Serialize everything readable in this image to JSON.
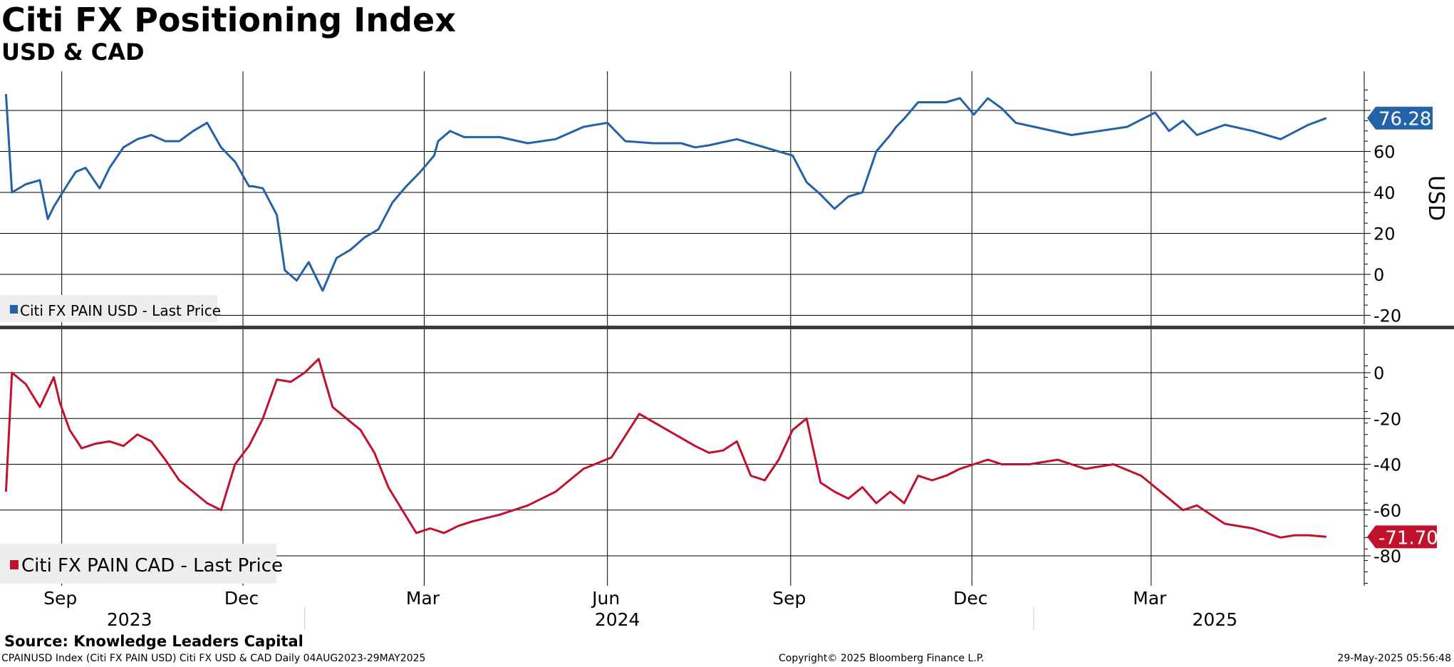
{
  "header": {
    "title": "Citi FX Positioning Index",
    "subtitle": "USD & CAD"
  },
  "footer": {
    "source": "Source: Knowledge Leaders Capital",
    "ticker_info": "CPAINUSD Index (Citi FX PAIN USD) Citi FX USD & CAD  Daily 04AUG2023-29MAY2025",
    "copyright": "Copyright© 2025 Bloomberg Finance L.P.",
    "timestamp": "29-May-2025 05:56:48"
  },
  "colors": {
    "usd": "#2462a8",
    "cad": "#c0122c",
    "grid": "#000000"
  },
  "chart_data": [
    {
      "type": "line",
      "panel": "top",
      "ylabel": "USD",
      "ylim": [
        -20,
        90
      ],
      "yticks": [
        -20,
        0,
        20,
        40,
        60,
        80
      ],
      "ytick_labels": [
        "-20",
        "0",
        "20",
        "40",
        "60",
        ""
      ],
      "grid": true,
      "legend": "bottom-left",
      "last_value_label": "76.28",
      "series": [
        {
          "name": "Citi FX PAIN USD - Last Price",
          "color": "#2462a8",
          "x": [
            "2023-08-04",
            "2023-08-07",
            "2023-08-14",
            "2023-08-21",
            "2023-08-25",
            "2023-08-28",
            "2023-09-04",
            "2023-09-08",
            "2023-09-13",
            "2023-09-20",
            "2023-09-25",
            "2023-10-02",
            "2023-10-09",
            "2023-10-16",
            "2023-10-23",
            "2023-10-30",
            "2023-11-06",
            "2023-11-13",
            "2023-11-20",
            "2023-11-27",
            "2023-12-04",
            "2023-12-06",
            "2023-12-11",
            "2023-12-18",
            "2023-12-22",
            "2023-12-28",
            "2024-01-03",
            "2024-01-05",
            "2024-01-10",
            "2024-01-17",
            "2024-01-24",
            "2024-01-31",
            "2024-02-07",
            "2024-02-14",
            "2024-02-21",
            "2024-02-28",
            "2024-03-06",
            "2024-03-08",
            "2024-03-14",
            "2024-03-21",
            "2024-03-28",
            "2024-04-08",
            "2024-04-22",
            "2024-05-06",
            "2024-05-20",
            "2024-06-01",
            "2024-06-07",
            "2024-06-10",
            "2024-06-24",
            "2024-07-08",
            "2024-07-15",
            "2024-07-22",
            "2024-08-05",
            "2024-08-19",
            "2024-09-02",
            "2024-09-09",
            "2024-09-16",
            "2024-09-23",
            "2024-09-30",
            "2024-10-07",
            "2024-10-14",
            "2024-10-21",
            "2024-10-24",
            "2024-10-28",
            "2024-11-04",
            "2024-11-11",
            "2024-11-18",
            "2024-11-25",
            "2024-12-02",
            "2024-12-09",
            "2024-12-16",
            "2024-12-23",
            "2025-01-06",
            "2025-01-20",
            "2025-02-03",
            "2025-02-17",
            "2025-03-03",
            "2025-03-10",
            "2025-03-17",
            "2025-03-24",
            "2025-04-07",
            "2025-04-21",
            "2025-05-05",
            "2025-05-19",
            "2025-05-28"
          ],
          "values": [
            88,
            40,
            44,
            46,
            27,
            33,
            44,
            50,
            52,
            42,
            52,
            62,
            66,
            68,
            65,
            65,
            70,
            74,
            62,
            55,
            43,
            43,
            42,
            29,
            2,
            -3,
            6,
            2,
            -8,
            8,
            12,
            18,
            22,
            35,
            43,
            50,
            58,
            65,
            70,
            67,
            67,
            67,
            64,
            66,
            72,
            74,
            68,
            65,
            64,
            64,
            62,
            63,
            66,
            62,
            58,
            45,
            39,
            32,
            38,
            40,
            60,
            68,
            72,
            76,
            84,
            84,
            84,
            86,
            78,
            86,
            81,
            74,
            71,
            68,
            70,
            72,
            79,
            70,
            75,
            68,
            73,
            70,
            66,
            73,
            76.28
          ]
        }
      ]
    },
    {
      "type": "line",
      "panel": "bottom",
      "ylim": [
        -92,
        12
      ],
      "yticks": [
        -80,
        -60,
        -40,
        -20,
        0
      ],
      "ytick_labels": [
        "-80",
        "-60",
        "-40",
        "-20",
        "0"
      ],
      "grid": true,
      "legend": "bottom-left",
      "last_value_label": "-71.70",
      "xticks": [
        "Sep",
        "Dec",
        "Mar",
        "Jun",
        "Sep",
        "Dec",
        "Mar"
      ],
      "xyears": [
        "2023",
        "2024",
        "2025"
      ],
      "series": [
        {
          "name": "Citi FX PAIN CAD - Last Price",
          "color": "#c0122c",
          "x": [
            "2023-08-04",
            "2023-08-07",
            "2023-08-14",
            "2023-08-21",
            "2023-08-28",
            "2023-08-31",
            "2023-09-05",
            "2023-09-11",
            "2023-09-18",
            "2023-09-25",
            "2023-10-02",
            "2023-10-09",
            "2023-10-16",
            "2023-10-23",
            "2023-10-30",
            "2023-11-06",
            "2023-11-13",
            "2023-11-20",
            "2023-11-27",
            "2023-12-04",
            "2023-12-11",
            "2023-12-18",
            "2023-12-25",
            "2024-01-01",
            "2024-01-08",
            "2024-01-15",
            "2024-01-22",
            "2024-01-29",
            "2024-02-05",
            "2024-02-12",
            "2024-02-19",
            "2024-02-26",
            "2024-03-04",
            "2024-03-11",
            "2024-03-18",
            "2024-03-25",
            "2024-04-08",
            "2024-04-22",
            "2024-05-06",
            "2024-05-20",
            "2024-06-03",
            "2024-06-17",
            "2024-07-01",
            "2024-07-15",
            "2024-07-22",
            "2024-07-29",
            "2024-08-05",
            "2024-08-12",
            "2024-08-19",
            "2024-08-26",
            "2024-09-02",
            "2024-09-09",
            "2024-09-16",
            "2024-09-23",
            "2024-09-30",
            "2024-10-07",
            "2024-10-14",
            "2024-10-21",
            "2024-10-28",
            "2024-11-04",
            "2024-11-11",
            "2024-11-18",
            "2024-11-25",
            "2024-12-02",
            "2024-12-09",
            "2024-12-16",
            "2024-12-30",
            "2025-01-13",
            "2025-01-27",
            "2025-02-10",
            "2025-02-24",
            "2025-03-10",
            "2025-03-17",
            "2025-03-24",
            "2025-03-31",
            "2025-04-07",
            "2025-04-21",
            "2025-05-05",
            "2025-05-12",
            "2025-05-19",
            "2025-05-28"
          ],
          "values": [
            -52,
            0,
            -5,
            -15,
            -2,
            -13,
            -25,
            -33,
            -31,
            -30,
            -32,
            -27,
            -30,
            -38,
            -47,
            -52,
            -57,
            -60,
            -40,
            -32,
            -20,
            -3,
            -4,
            0,
            6,
            -15,
            -20,
            -25,
            -35,
            -50,
            -60,
            -70,
            -68,
            -70,
            -67,
            -65,
            -62,
            -58,
            -52,
            -42,
            -37,
            -18,
            -25,
            -32,
            -35,
            -34,
            -30,
            -45,
            -47,
            -38,
            -25,
            -20,
            -48,
            -52,
            -55,
            -50,
            -57,
            -52,
            -57,
            -45,
            -47,
            -45,
            -42,
            -40,
            -38,
            -40,
            -40,
            -38,
            -42,
            -40,
            -45,
            -55,
            -60,
            -58,
            -62,
            -66,
            -68,
            -72,
            -71,
            -71,
            -71.7
          ]
        }
      ]
    }
  ]
}
